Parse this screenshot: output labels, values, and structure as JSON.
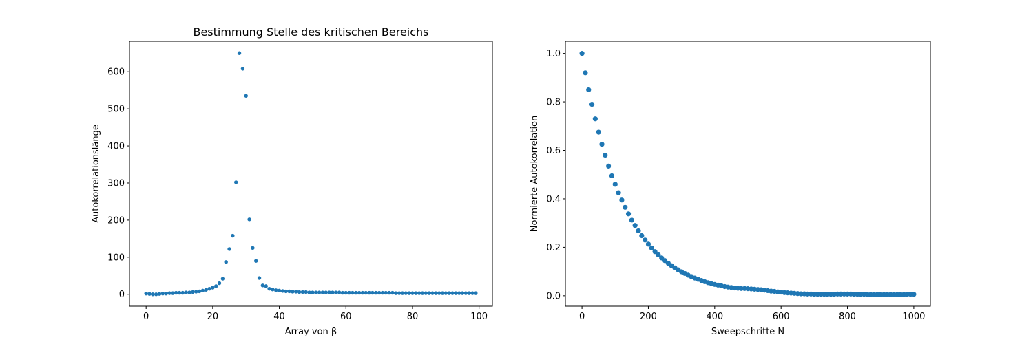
{
  "chart_data": [
    {
      "type": "scatter",
      "title": "Bestimmung Stelle des kritischen Bereichs",
      "xlabel": "Array von β",
      "ylabel": "Autokorrelationslänge",
      "xlim": [
        -5,
        104
      ],
      "ylim": [
        -32,
        682
      ],
      "xticks": [
        0,
        20,
        40,
        60,
        80,
        100
      ],
      "yticks": [
        0,
        100,
        200,
        300,
        400,
        500,
        600
      ],
      "color": "#1f77b4",
      "grid": false,
      "legend": false,
      "series": [
        {
          "x": [
            0,
            1,
            2,
            3,
            4,
            5,
            6,
            7,
            8,
            9,
            10,
            11,
            12,
            13,
            14,
            15,
            16,
            17,
            18,
            19,
            20,
            21,
            22,
            23,
            24,
            25,
            26,
            27,
            28,
            29,
            30,
            31,
            32,
            33,
            34,
            35,
            36,
            37,
            38,
            39,
            40,
            41,
            42,
            43,
            44,
            45,
            46,
            47,
            48,
            49,
            50,
            51,
            52,
            53,
            54,
            55,
            56,
            57,
            58,
            59,
            60,
            61,
            62,
            63,
            64,
            65,
            66,
            67,
            68,
            69,
            70,
            71,
            72,
            73,
            74,
            75,
            76,
            77,
            78,
            79,
            80,
            81,
            82,
            83,
            84,
            85,
            86,
            87,
            88,
            89,
            90,
            91,
            92,
            93,
            94,
            95,
            96,
            97,
            98,
            99
          ],
          "y": [
            2,
            1,
            0,
            0,
            1,
            2,
            2,
            3,
            3,
            4,
            4,
            4,
            5,
            5,
            6,
            7,
            8,
            10,
            12,
            15,
            18,
            22,
            30,
            42,
            87,
            122,
            158,
            302,
            650,
            608,
            535,
            202,
            125,
            90,
            44,
            24,
            22,
            15,
            13,
            11,
            10,
            9,
            8,
            8,
            7,
            7,
            6,
            6,
            6,
            5,
            5,
            5,
            5,
            5,
            5,
            5,
            5,
            5,
            5,
            4,
            4,
            4,
            4,
            4,
            4,
            4,
            4,
            4,
            4,
            4,
            4,
            4,
            4,
            4,
            4,
            3,
            3,
            3,
            3,
            3,
            3,
            3,
            3,
            3,
            3,
            3,
            3,
            3,
            3,
            3,
            3,
            3,
            3,
            3,
            3,
            3,
            3,
            3,
            3,
            3
          ]
        }
      ]
    },
    {
      "type": "scatter",
      "title": "",
      "xlabel": "Sweepschritte N",
      "ylabel": "Normierte Autokorrelation",
      "xlim": [
        -50,
        1050
      ],
      "ylim": [
        -0.043,
        1.05
      ],
      "xticks": [
        0,
        200,
        400,
        600,
        800,
        1000
      ],
      "yticks": [
        "0.0",
        "0.2",
        "0.4",
        "0.6",
        "0.8",
        "1.0"
      ],
      "color": "#1f77b4",
      "grid": false,
      "legend": false,
      "series": [
        {
          "x": [
            0,
            10,
            20,
            30,
            40,
            50,
            60,
            70,
            80,
            90,
            100,
            110,
            120,
            130,
            140,
            150,
            160,
            170,
            180,
            190,
            200,
            210,
            220,
            230,
            240,
            250,
            260,
            270,
            280,
            290,
            300,
            310,
            320,
            330,
            340,
            350,
            360,
            370,
            380,
            390,
            400,
            410,
            420,
            430,
            440,
            450,
            460,
            470,
            480,
            490,
            500,
            510,
            520,
            530,
            540,
            550,
            560,
            570,
            580,
            590,
            600,
            610,
            620,
            630,
            640,
            650,
            660,
            670,
            680,
            690,
            700,
            710,
            720,
            730,
            740,
            750,
            760,
            770,
            780,
            790,
            800,
            810,
            820,
            830,
            840,
            850,
            860,
            870,
            880,
            890,
            900,
            910,
            920,
            930,
            940,
            950,
            960,
            970,
            980,
            990,
            1000
          ],
          "y": [
            1.0,
            0.92,
            0.85,
            0.79,
            0.73,
            0.675,
            0.625,
            0.58,
            0.535,
            0.495,
            0.46,
            0.425,
            0.395,
            0.365,
            0.338,
            0.312,
            0.29,
            0.268,
            0.248,
            0.23,
            0.213,
            0.197,
            0.182,
            0.169,
            0.156,
            0.145,
            0.134,
            0.124,
            0.115,
            0.107,
            0.099,
            0.092,
            0.085,
            0.079,
            0.073,
            0.068,
            0.063,
            0.058,
            0.054,
            0.05,
            0.047,
            0.044,
            0.041,
            0.038,
            0.036,
            0.034,
            0.032,
            0.031,
            0.03,
            0.03,
            0.029,
            0.028,
            0.027,
            0.026,
            0.025,
            0.023,
            0.021,
            0.019,
            0.018,
            0.016,
            0.015,
            0.013,
            0.012,
            0.011,
            0.01,
            0.009,
            0.008,
            0.008,
            0.007,
            0.007,
            0.006,
            0.006,
            0.006,
            0.006,
            0.006,
            0.006,
            0.006,
            0.007,
            0.007,
            0.007,
            0.007,
            0.007,
            0.006,
            0.006,
            0.006,
            0.006,
            0.005,
            0.005,
            0.005,
            0.005,
            0.005,
            0.005,
            0.005,
            0.005,
            0.005,
            0.005,
            0.005,
            0.005,
            0.006,
            0.006,
            0.006
          ]
        }
      ]
    }
  ]
}
